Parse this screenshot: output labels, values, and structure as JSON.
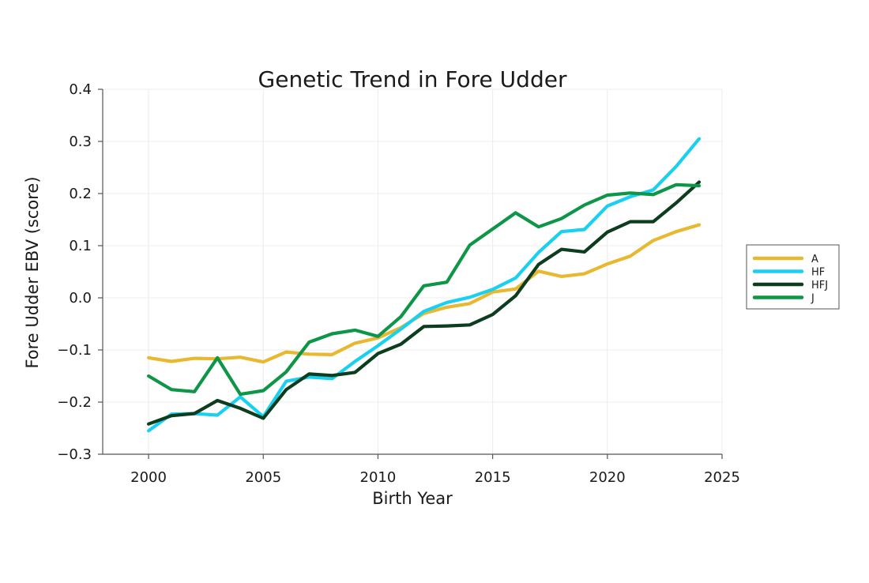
{
  "chart_data": {
    "type": "line",
    "title": "Genetic Trend in Fore Udder",
    "xlabel": "Birth Year",
    "ylabel": "Fore Udder EBV (score)",
    "xlim": [
      1998,
      2025
    ],
    "ylim": [
      -0.3,
      0.4
    ],
    "x_ticks": [
      2000,
      2005,
      2010,
      2015,
      2020,
      2025
    ],
    "x_tick_labels": [
      "2000",
      "2005",
      "2010",
      "2015",
      "2020",
      "2025"
    ],
    "y_ticks": [
      -0.3,
      -0.2,
      -0.1,
      0.0,
      0.1,
      0.2,
      0.3,
      0.4
    ],
    "y_tick_labels": [
      "−0.3",
      "−0.2",
      "−0.1",
      "0.0",
      "0.1",
      "0.2",
      "0.3",
      "0.4"
    ],
    "grid": true,
    "legend_position": "right",
    "x": [
      2000,
      2001,
      2002,
      2003,
      2004,
      2005,
      2006,
      2007,
      2008,
      2009,
      2010,
      2011,
      2012,
      2013,
      2014,
      2015,
      2016,
      2017,
      2018,
      2019,
      2020,
      2021,
      2022,
      2023,
      2024
    ],
    "series": [
      {
        "name": "A",
        "color": "#e8b830",
        "values": [
          -0.115,
          -0.122,
          -0.116,
          -0.117,
          -0.114,
          -0.123,
          -0.104,
          -0.108,
          -0.109,
          -0.087,
          -0.077,
          -0.057,
          -0.03,
          -0.018,
          -0.011,
          0.011,
          0.017,
          0.051,
          0.041,
          0.046,
          0.065,
          0.08,
          0.11,
          0.127,
          0.14
        ]
      },
      {
        "name": "HF",
        "color": "#19d0f0",
        "values": [
          -0.255,
          -0.223,
          -0.222,
          -0.225,
          -0.19,
          -0.228,
          -0.16,
          -0.152,
          -0.155,
          -0.122,
          -0.092,
          -0.06,
          -0.026,
          -0.009,
          0.001,
          0.016,
          0.038,
          0.087,
          0.127,
          0.131,
          0.176,
          0.194,
          0.207,
          0.252,
          0.305
        ]
      },
      {
        "name": "HFJ",
        "color": "#0d3d1f",
        "values": [
          -0.242,
          -0.226,
          -0.222,
          -0.197,
          -0.212,
          -0.231,
          -0.176,
          -0.146,
          -0.149,
          -0.143,
          -0.107,
          -0.089,
          -0.055,
          -0.054,
          -0.052,
          -0.032,
          0.004,
          0.064,
          0.093,
          0.088,
          0.126,
          0.146,
          0.146,
          0.182,
          0.222
        ]
      },
      {
        "name": "J",
        "color": "#0e9648",
        "values": [
          -0.15,
          -0.176,
          -0.18,
          -0.115,
          -0.185,
          -0.178,
          -0.142,
          -0.085,
          -0.069,
          -0.062,
          -0.074,
          -0.036,
          0.023,
          0.03,
          0.101,
          0.132,
          0.163,
          0.136,
          0.152,
          0.178,
          0.197,
          0.201,
          0.198,
          0.217,
          0.215
        ]
      }
    ]
  }
}
